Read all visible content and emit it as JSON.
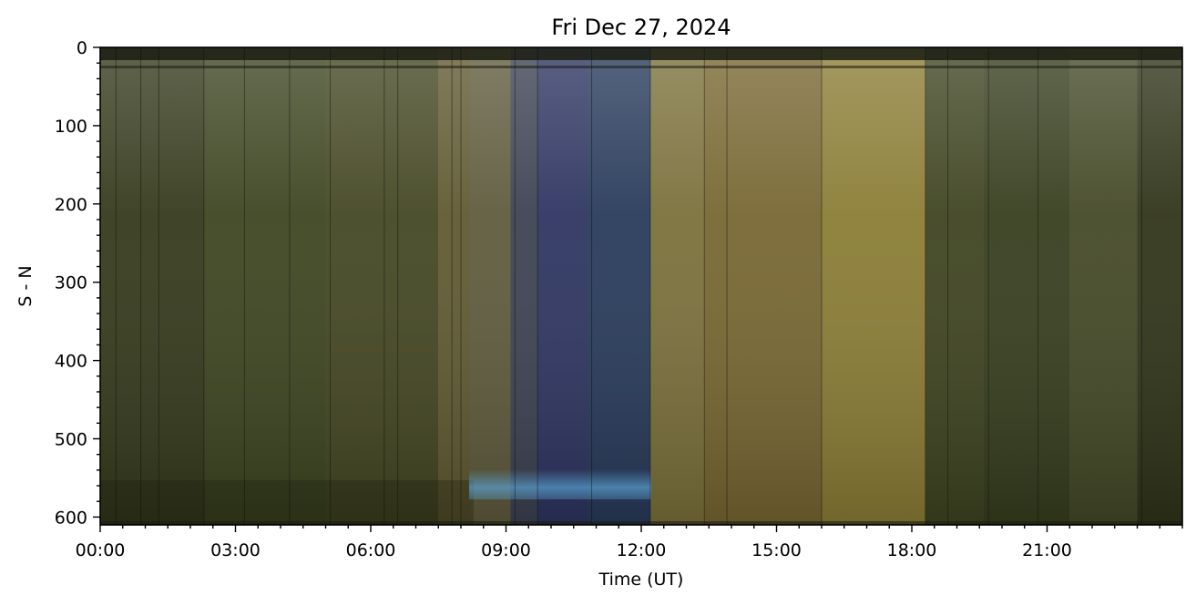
{
  "chart_data": {
    "type": "heatmap",
    "title": "Fri Dec 27, 2024",
    "xlabel": "Time (UT)",
    "ylabel": "S - N",
    "xlim_hours": [
      0,
      24
    ],
    "ylim": [
      610,
      0
    ],
    "x_ticks": [
      {
        "hour": 0,
        "label": "00:00"
      },
      {
        "hour": 3,
        "label": "03:00"
      },
      {
        "hour": 6,
        "label": "06:00"
      },
      {
        "hour": 9,
        "label": "09:00"
      },
      {
        "hour": 12,
        "label": "12:00"
      },
      {
        "hour": 15,
        "label": "15:00"
      },
      {
        "hour": 18,
        "label": "18:00"
      },
      {
        "hour": 21,
        "label": "21:00"
      }
    ],
    "y_ticks": [
      {
        "value": 0,
        "label": "0"
      },
      {
        "value": 100,
        "label": "100"
      },
      {
        "value": 200,
        "label": "200"
      },
      {
        "value": 300,
        "label": "300"
      },
      {
        "value": 400,
        "label": "400"
      },
      {
        "value": 500,
        "label": "500"
      },
      {
        "value": 600,
        "label": "600"
      }
    ],
    "colors": {
      "dark_olive": "#2c3118",
      "olive": "#4a4e22",
      "yellow": "#c8b23a",
      "bright_yellow": "#e4cd4e",
      "blue": "#2e3e63",
      "deep_blue": "#23305a",
      "light_blue": "#5aa2d2"
    },
    "color_bands": [
      {
        "from_hour": 0.0,
        "to_hour": 2.3,
        "color": "#34391b"
      },
      {
        "from_hour": 2.3,
        "to_hour": 5.0,
        "color": "#3c4420"
      },
      {
        "from_hour": 5.0,
        "to_hour": 7.5,
        "color": "#434622"
      },
      {
        "from_hour": 7.5,
        "to_hour": 8.2,
        "color": "#5f5830"
      },
      {
        "from_hour": 8.2,
        "to_hour": 9.1,
        "color": "#5e5a3c"
      },
      {
        "from_hour": 9.1,
        "to_hour": 9.7,
        "color": "#3c4152"
      },
      {
        "from_hour": 9.7,
        "to_hour": 10.8,
        "color": "#2d3460"
      },
      {
        "from_hour": 10.8,
        "to_hour": 12.2,
        "color": "#273a5a"
      },
      {
        "from_hour": 12.2,
        "to_hour": 13.4,
        "color": "#7a6f3a"
      },
      {
        "from_hour": 13.4,
        "to_hour": 16.0,
        "color": "#776631"
      },
      {
        "from_hour": 16.0,
        "to_hour": 18.3,
        "color": "#8a7c34"
      },
      {
        "from_hour": 18.3,
        "to_hour": 19.6,
        "color": "#3e4320"
      },
      {
        "from_hour": 19.6,
        "to_hour": 21.5,
        "color": "#363d1d"
      },
      {
        "from_hour": 21.5,
        "to_hour": 23.0,
        "color": "#434826"
      },
      {
        "from_hour": 23.0,
        "to_hour": 24.0,
        "color": "#2f3318"
      }
    ]
  }
}
